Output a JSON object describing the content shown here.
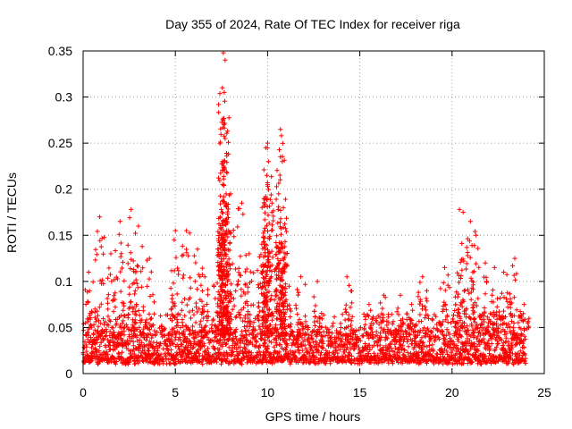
{
  "chart_data": {
    "type": "scatter",
    "title": "Day 355 of 2024, Rate Of TEC Index for receiver riga",
    "xlabel": "GPS time / hours",
    "ylabel": "ROTI / TECUs",
    "xlim": [
      0,
      25
    ],
    "ylim": [
      0,
      0.35
    ],
    "xticks": [
      0,
      5,
      10,
      15,
      20,
      25
    ],
    "xtick_labels": [
      "0",
      "5",
      "10",
      "15",
      "20",
      "25"
    ],
    "yticks": [
      0,
      0.05,
      0.1,
      0.15,
      0.2,
      0.25,
      0.3,
      0.35
    ],
    "ytick_labels": [
      "0",
      "0.05",
      "0.1",
      "0.15",
      "0.2",
      "0.25",
      "0.3",
      "0.35"
    ],
    "grid": true,
    "marker": "+",
    "color": "#ff0000",
    "data_x_range": [
      0,
      24
    ],
    "baseline_band": [
      0.01,
      0.04
    ],
    "peaks": [
      {
        "x": 0.3,
        "y": 0.11
      },
      {
        "x": 0.9,
        "y": 0.17
      },
      {
        "x": 1.5,
        "y": 0.13
      },
      {
        "x": 2.0,
        "y": 0.165
      },
      {
        "x": 2.6,
        "y": 0.178
      },
      {
        "x": 3.0,
        "y": 0.16
      },
      {
        "x": 3.6,
        "y": 0.125
      },
      {
        "x": 5.0,
        "y": 0.155
      },
      {
        "x": 5.6,
        "y": 0.155
      },
      {
        "x": 6.2,
        "y": 0.135
      },
      {
        "x": 6.6,
        "y": 0.105
      },
      {
        "x": 7.3,
        "y": 0.135
      },
      {
        "x": 7.6,
        "y": 0.348
      },
      {
        "x": 7.7,
        "y": 0.34
      },
      {
        "x": 7.55,
        "y": 0.31
      },
      {
        "x": 7.65,
        "y": 0.305
      },
      {
        "x": 7.6,
        "y": 0.275
      },
      {
        "x": 7.7,
        "y": 0.255
      },
      {
        "x": 7.55,
        "y": 0.23
      },
      {
        "x": 7.75,
        "y": 0.195
      },
      {
        "x": 8.0,
        "y": 0.195
      },
      {
        "x": 8.6,
        "y": 0.185
      },
      {
        "x": 9.0,
        "y": 0.13
      },
      {
        "x": 9.7,
        "y": 0.18
      },
      {
        "x": 10.0,
        "y": 0.25
      },
      {
        "x": 9.9,
        "y": 0.245
      },
      {
        "x": 10.05,
        "y": 0.23
      },
      {
        "x": 9.95,
        "y": 0.215
      },
      {
        "x": 10.0,
        "y": 0.205
      },
      {
        "x": 10.7,
        "y": 0.265
      },
      {
        "x": 10.75,
        "y": 0.258
      },
      {
        "x": 10.7,
        "y": 0.235
      },
      {
        "x": 10.8,
        "y": 0.23
      },
      {
        "x": 10.6,
        "y": 0.195
      },
      {
        "x": 11.0,
        "y": 0.13
      },
      {
        "x": 11.8,
        "y": 0.105
      },
      {
        "x": 12.7,
        "y": 0.1
      },
      {
        "x": 14.3,
        "y": 0.105
      },
      {
        "x": 15.5,
        "y": 0.075
      },
      {
        "x": 16.3,
        "y": 0.085
      },
      {
        "x": 17.2,
        "y": 0.085
      },
      {
        "x": 17.8,
        "y": 0.075
      },
      {
        "x": 18.4,
        "y": 0.105
      },
      {
        "x": 19.6,
        "y": 0.115
      },
      {
        "x": 20.4,
        "y": 0.178
      },
      {
        "x": 20.6,
        "y": 0.175
      },
      {
        "x": 21.0,
        "y": 0.165
      },
      {
        "x": 21.3,
        "y": 0.15
      },
      {
        "x": 21.8,
        "y": 0.12
      },
      {
        "x": 22.3,
        "y": 0.115
      },
      {
        "x": 22.8,
        "y": 0.11
      },
      {
        "x": 23.4,
        "y": 0.125
      },
      {
        "x": 23.9,
        "y": 0.075
      }
    ]
  }
}
